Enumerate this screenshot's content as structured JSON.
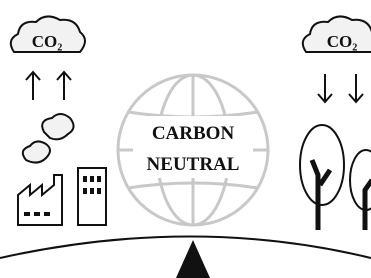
{
  "left_cloud": {
    "label": "CO₂"
  },
  "right_cloud": {
    "label": "CO₂"
  },
  "globe": {
    "lines": [
      "CARBON",
      "NEUTRAL"
    ]
  }
}
